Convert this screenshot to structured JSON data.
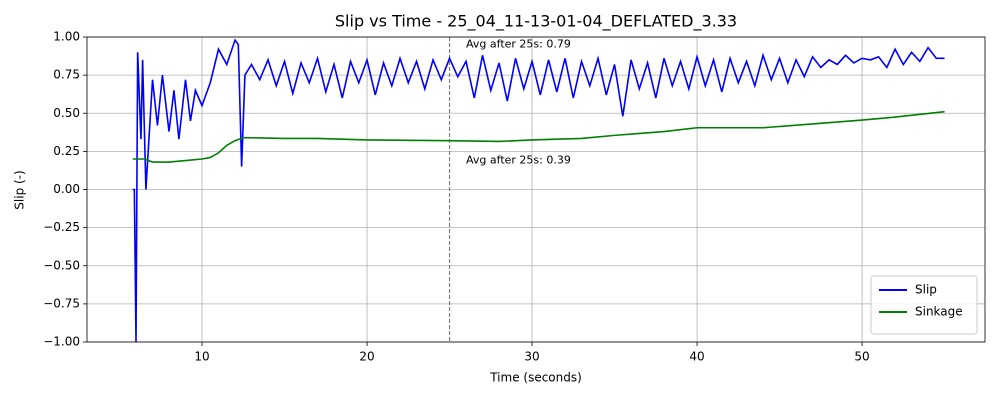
{
  "chart_data": {
    "type": "line",
    "title": "Slip vs Time - 25_04_11-13-01-04_DEFLATED_3.33",
    "xlabel": "Time (seconds)",
    "ylabel": "Slip (-)",
    "xlim": [
      3.03,
      57.45
    ],
    "ylim": [
      -1,
      1
    ],
    "xticks": [
      10,
      20,
      30,
      40,
      50
    ],
    "yticks": [
      {
        "value": -1,
        "label": "−1.00"
      },
      {
        "value": -0.75,
        "label": "−0.75"
      },
      {
        "value": -0.5,
        "label": "−0.50"
      },
      {
        "value": -0.25,
        "label": "−0.25"
      },
      {
        "value": 0,
        "label": "0.00"
      },
      {
        "value": 0.25,
        "label": "0.25"
      },
      {
        "value": 0.5,
        "label": "0.50"
      },
      {
        "value": 0.75,
        "label": "0.75"
      },
      {
        "value": 1,
        "label": "1.00"
      }
    ],
    "grid": true,
    "legend": "lower right",
    "series": [
      {
        "name": "Slip",
        "color": "#0000ff",
        "x": [
          5.8,
          5.9,
          6.0,
          6.1,
          6.3,
          6.4,
          6.6,
          7.0,
          7.3,
          7.6,
          8.0,
          8.3,
          8.6,
          9.0,
          9.3,
          9.6,
          10.0,
          10.5,
          11.0,
          11.5,
          12.0,
          12.2,
          12.4,
          12.6,
          13.0,
          13.5,
          14,
          14.5,
          15,
          15.5,
          16,
          16.5,
          17,
          17.5,
          18,
          18.5,
          19,
          19.5,
          20,
          20.5,
          21,
          21.5,
          22,
          22.5,
          23,
          23.5,
          24,
          24.5,
          25,
          25.5,
          26,
          26.5,
          27,
          27.5,
          28,
          28.5,
          29,
          29.5,
          30,
          30.5,
          31,
          31.5,
          32,
          32.5,
          33,
          33.5,
          34,
          34.5,
          35,
          35.5,
          36,
          36.5,
          37,
          37.5,
          38,
          38.5,
          39,
          39.5,
          40,
          40.5,
          41,
          41.5,
          42,
          42.5,
          43,
          43.5,
          44,
          44.5,
          45,
          45.5,
          46,
          46.5,
          47,
          47.5,
          48,
          48.5,
          49,
          49.5,
          50,
          50.5,
          51,
          51.5,
          52,
          52.5,
          53,
          53.5,
          54,
          54.5,
          55
        ],
        "values": [
          0.0,
          0.0,
          -1.0,
          0.9,
          0.33,
          0.85,
          0.0,
          0.72,
          0.42,
          0.75,
          0.38,
          0.65,
          0.33,
          0.72,
          0.45,
          0.65,
          0.55,
          0.7,
          0.92,
          0.82,
          0.98,
          0.95,
          0.15,
          0.75,
          0.82,
          0.72,
          0.85,
          0.68,
          0.84,
          0.63,
          0.83,
          0.7,
          0.86,
          0.64,
          0.82,
          0.6,
          0.84,
          0.7,
          0.85,
          0.62,
          0.83,
          0.68,
          0.86,
          0.7,
          0.84,
          0.66,
          0.85,
          0.72,
          0.86,
          0.74,
          0.84,
          0.6,
          0.88,
          0.65,
          0.83,
          0.58,
          0.86,
          0.66,
          0.84,
          0.62,
          0.85,
          0.64,
          0.86,
          0.6,
          0.84,
          0.68,
          0.86,
          0.62,
          0.82,
          0.48,
          0.85,
          0.66,
          0.83,
          0.6,
          0.86,
          0.68,
          0.84,
          0.66,
          0.87,
          0.68,
          0.85,
          0.64,
          0.86,
          0.7,
          0.84,
          0.68,
          0.88,
          0.72,
          0.86,
          0.7,
          0.85,
          0.74,
          0.87,
          0.8,
          0.85,
          0.82,
          0.88,
          0.83,
          0.86,
          0.85,
          0.87,
          0.8,
          0.92,
          0.82,
          0.9,
          0.84,
          0.93,
          0.86,
          0.86
        ]
      },
      {
        "name": "Sinkage",
        "color": "#008000",
        "x": [
          5.8,
          6.5,
          7,
          8,
          9,
          10,
          10.5,
          11,
          11.5,
          12,
          12.5,
          15,
          17,
          20,
          25,
          28,
          30,
          33,
          35,
          38,
          40,
          44,
          47,
          50,
          52,
          55
        ],
        "values": [
          0.2,
          0.2,
          0.18,
          0.18,
          0.19,
          0.2,
          0.21,
          0.24,
          0.29,
          0.32,
          0.34,
          0.335,
          0.335,
          0.325,
          0.32,
          0.315,
          0.325,
          0.335,
          0.355,
          0.38,
          0.405,
          0.405,
          0.43,
          0.455,
          0.475,
          0.51
        ]
      }
    ],
    "vline": {
      "x": 25,
      "color": "#808080"
    },
    "annotations": [
      {
        "text": "Avg after 25s: 0.79",
        "x": 26,
        "y": 0.95,
        "color": "#0000ff"
      },
      {
        "text": "Avg after 25s: 0.39",
        "x": 26,
        "y": 0.19,
        "color": "#008000"
      }
    ]
  }
}
